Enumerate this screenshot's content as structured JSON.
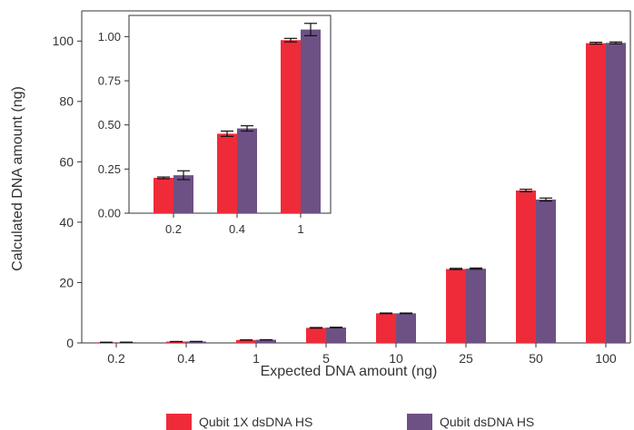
{
  "chart_data": {
    "main": {
      "type": "bar",
      "categories": [
        "0.2",
        "0.4",
        "1",
        "5",
        "10",
        "25",
        "50",
        "100"
      ],
      "series": [
        {
          "name": "Qubit 1X dsDNA HS",
          "color": "#ef2b3a",
          "values": [
            0.2,
            0.45,
            0.98,
            5.0,
            9.8,
            24.5,
            50.5,
            99.3
          ],
          "errors": [
            0.01,
            0.02,
            0.02,
            0.1,
            0.1,
            0.2,
            0.4,
            0.3
          ]
        },
        {
          "name": "Qubit dsDNA HS",
          "color": "#6d5185",
          "values": [
            0.21,
            0.47,
            1.04,
            5.1,
            9.8,
            24.6,
            47.5,
            99.4
          ],
          "errors": [
            0.02,
            0.02,
            0.03,
            0.1,
            0.1,
            0.2,
            0.5,
            0.3
          ]
        }
      ],
      "xlabel": "Expected DNA amount (ng)",
      "ylabel": "Calculated DNA amount (ng)",
      "ylim": [
        0,
        110
      ],
      "yticks": [
        "0",
        "20",
        "40",
        "60",
        "80",
        "100"
      ],
      "grid": false,
      "legend": "bottom"
    },
    "inset": {
      "type": "bar",
      "categories": [
        "0.2",
        "0.4",
        "1"
      ],
      "series": [
        {
          "name": "Qubit 1X dsDNA HS",
          "color": "#ef2b3a",
          "values": [
            0.2,
            0.45,
            0.98
          ],
          "errors": [
            0.005,
            0.015,
            0.01
          ]
        },
        {
          "name": "Qubit dsDNA HS",
          "color": "#6d5185",
          "values": [
            0.215,
            0.48,
            1.04
          ],
          "errors": [
            0.025,
            0.015,
            0.035
          ]
        }
      ],
      "ylim": [
        0,
        1.12
      ],
      "yticks": [
        "0.00",
        "0.25",
        "0.50",
        "0.75",
        "1.00"
      ]
    }
  }
}
